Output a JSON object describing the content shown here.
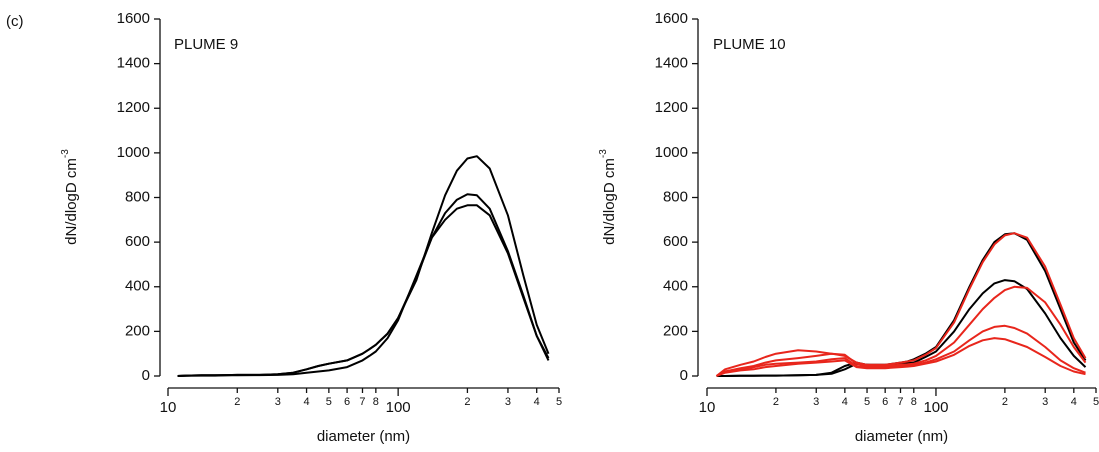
{
  "panel_label": "(c)",
  "chart_data": [
    {
      "type": "line",
      "annotation": "PLUME 9",
      "xlabel": "diameter (nm)",
      "ylabel": "dN/dlogD cm",
      "ylabel_sup": "-3",
      "xlog": true,
      "xlim": [
        10,
        500
      ],
      "ylim": [
        0,
        1600
      ],
      "xticks": [
        10,
        {
          "value": 20,
          "label": "2"
        },
        {
          "value": 30,
          "label": "3"
        },
        {
          "value": 40,
          "label": "4"
        },
        {
          "value": 50,
          "label": "5"
        },
        {
          "value": 60,
          "label": "6"
        },
        {
          "value": 70,
          "label": "7"
        },
        {
          "value": 80,
          "label": "8"
        },
        100,
        {
          "value": 200,
          "label": "2"
        },
        {
          "value": 300,
          "label": "3"
        },
        {
          "value": 400,
          "label": "4"
        },
        {
          "value": 500,
          "label": "5"
        }
      ],
      "yticks": [
        0,
        200,
        400,
        600,
        800,
        1000,
        1200,
        1400,
        1600
      ],
      "x": [
        11,
        12,
        14,
        16,
        18,
        20,
        25,
        30,
        35,
        40,
        45,
        50,
        60,
        70,
        75,
        80,
        90,
        100,
        120,
        140,
        160,
        180,
        200,
        220,
        250,
        300,
        350,
        400,
        450
      ],
      "series": [
        {
          "color": "#000000",
          "values": [
            0,
            2,
            3,
            3,
            4,
            5,
            5,
            8,
            15,
            30,
            45,
            55,
            70,
            100,
            120,
            140,
            190,
            260,
            430,
            640,
            810,
            920,
            975,
            985,
            930,
            720,
            450,
            230,
            100
          ]
        },
        {
          "color": "#000000",
          "values": [
            0,
            2,
            3,
            3,
            4,
            5,
            5,
            8,
            15,
            30,
            45,
            55,
            70,
            100,
            120,
            140,
            190,
            260,
            440,
            620,
            730,
            790,
            815,
            810,
            750,
            560,
            360,
            180,
            80
          ]
        },
        {
          "color": "#000000",
          "values": [
            0,
            1,
            2,
            2,
            3,
            3,
            4,
            5,
            8,
            15,
            20,
            25,
            40,
            70,
            90,
            110,
            170,
            250,
            450,
            620,
            700,
            750,
            765,
            765,
            720,
            550,
            350,
            180,
            70
          ]
        }
      ]
    },
    {
      "type": "line",
      "annotation": "PLUME 10",
      "xlabel": "diameter (nm)",
      "ylabel": "dN/dlogD cm",
      "ylabel_sup": "-3",
      "xlog": true,
      "xlim": [
        10,
        500
      ],
      "ylim": [
        0,
        1600
      ],
      "xticks": [
        10,
        {
          "value": 20,
          "label": "2"
        },
        {
          "value": 30,
          "label": "3"
        },
        {
          "value": 40,
          "label": "4"
        },
        {
          "value": 50,
          "label": "5"
        },
        {
          "value": 60,
          "label": "6"
        },
        {
          "value": 70,
          "label": "7"
        },
        {
          "value": 80,
          "label": "8"
        },
        100,
        {
          "value": 200,
          "label": "2"
        },
        {
          "value": 300,
          "label": "3"
        },
        {
          "value": 400,
          "label": "4"
        },
        {
          "value": 500,
          "label": "5"
        }
      ],
      "yticks": [
        0,
        200,
        400,
        600,
        800,
        1000,
        1200,
        1400,
        1600
      ],
      "x": [
        11,
        12,
        14,
        16,
        18,
        20,
        25,
        30,
        35,
        40,
        45,
        50,
        60,
        70,
        75,
        80,
        90,
        100,
        120,
        140,
        160,
        180,
        200,
        220,
        250,
        300,
        350,
        400,
        450
      ],
      "series": [
        {
          "color": "#000000",
          "values": [
            0,
            0,
            1,
            1,
            2,
            2,
            3,
            5,
            10,
            30,
            55,
            50,
            50,
            60,
            65,
            75,
            100,
            130,
            250,
            400,
            520,
            600,
            635,
            640,
            610,
            470,
            300,
            150,
            70
          ]
        },
        {
          "color": "#000000",
          "values": [
            0,
            0,
            1,
            1,
            2,
            2,
            3,
            5,
            15,
            45,
            60,
            50,
            45,
            55,
            58,
            60,
            85,
            110,
            200,
            300,
            370,
            415,
            430,
            425,
            390,
            280,
            170,
            90,
            40
          ]
        },
        {
          "color": "#e8261c",
          "values": [
            0,
            30,
            50,
            65,
            85,
            100,
            115,
            110,
            100,
            90,
            60,
            50,
            50,
            60,
            65,
            70,
            95,
            125,
            240,
            390,
            510,
            590,
            630,
            640,
            620,
            490,
            320,
            170,
            80
          ]
        },
        {
          "color": "#e8261c",
          "values": [
            0,
            20,
            35,
            45,
            60,
            70,
            80,
            90,
            100,
            95,
            55,
            45,
            45,
            50,
            52,
            55,
            70,
            90,
            150,
            230,
            300,
            350,
            385,
            400,
            395,
            330,
            230,
            130,
            60
          ]
        },
        {
          "color": "#e8261c",
          "values": [
            0,
            20,
            30,
            40,
            50,
            55,
            60,
            65,
            75,
            80,
            45,
            40,
            40,
            45,
            47,
            50,
            60,
            75,
            110,
            160,
            200,
            220,
            225,
            215,
            190,
            130,
            70,
            35,
            15
          ]
        },
        {
          "color": "#e8261c",
          "values": [
            0,
            15,
            25,
            30,
            40,
            45,
            55,
            60,
            65,
            70,
            40,
            35,
            35,
            40,
            42,
            45,
            55,
            65,
            95,
            135,
            160,
            170,
            165,
            150,
            130,
            85,
            45,
            20,
            8
          ]
        }
      ]
    }
  ]
}
